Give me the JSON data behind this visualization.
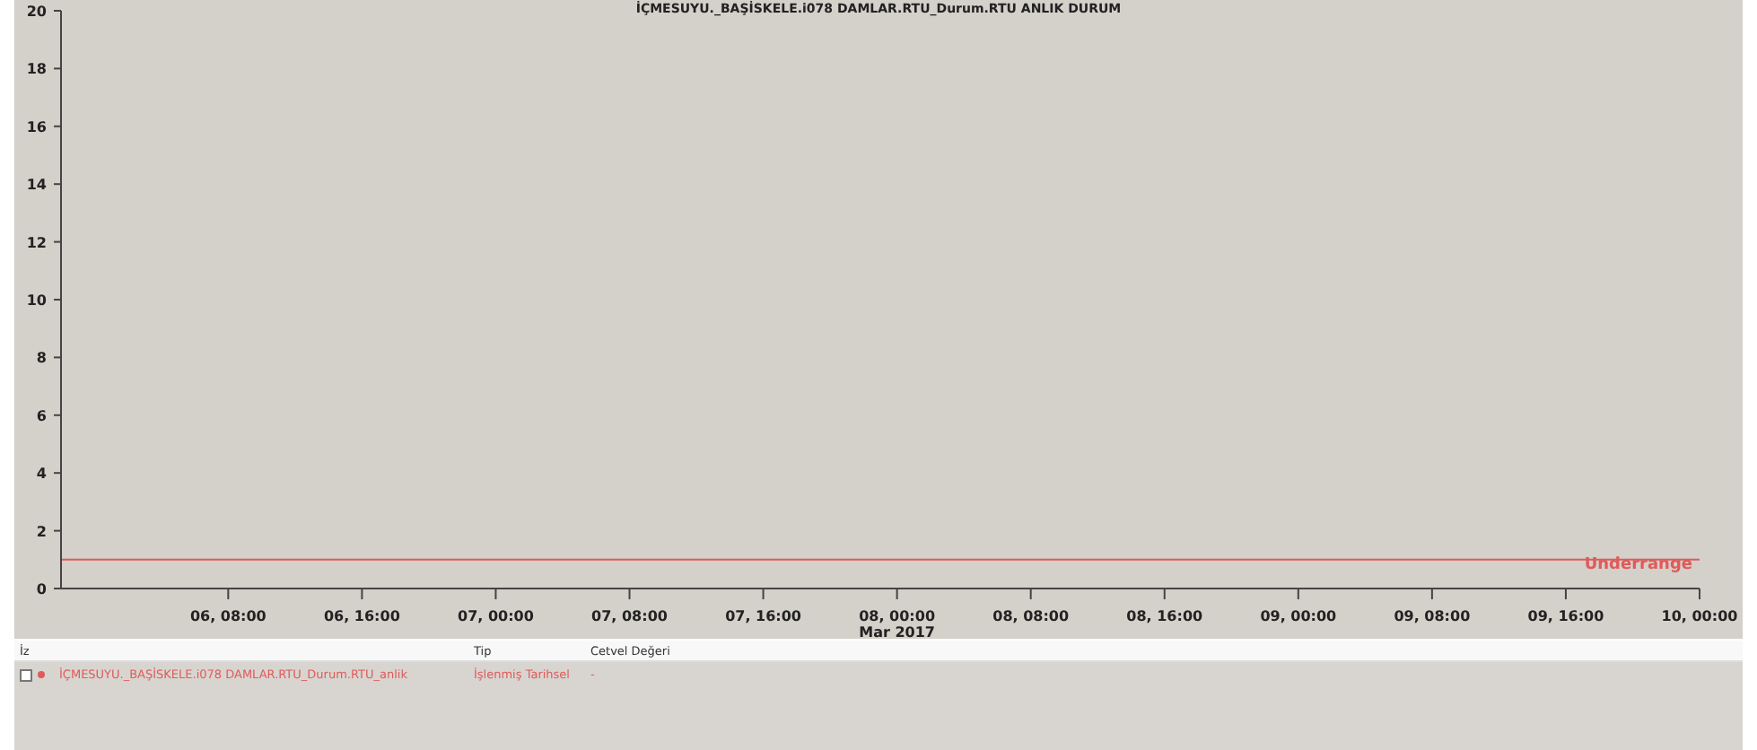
{
  "chart_data": {
    "type": "line",
    "title": "İÇMESUYU._BAŞİSKELE.i078 DAMLAR.RTU_Durum.RTU ANLIK DURUM",
    "x": [
      "2017-03-05T22:00",
      "2017-03-10T00:00"
    ],
    "series": [
      {
        "name": "İÇMESUYU._BAŞİSKELE.i078 DAMLAR.RTU_Durum.RTU_anlik",
        "color": "#e05a5a",
        "values": [
          1,
          1
        ]
      }
    ],
    "xlim": [
      "2017-03-05T22:00",
      "2017-03-10T00:00"
    ],
    "xticks": [
      {
        "value": "2017-03-06T08:00",
        "label": "06, 08:00"
      },
      {
        "value": "2017-03-06T16:00",
        "label": "06, 16:00"
      },
      {
        "value": "2017-03-07T00:00",
        "label": "07, 00:00"
      },
      {
        "value": "2017-03-07T08:00",
        "label": "07, 08:00"
      },
      {
        "value": "2017-03-07T16:00",
        "label": "07, 16:00"
      },
      {
        "value": "2017-03-08T00:00",
        "label": "08, 00:00\nMar 2017"
      },
      {
        "value": "2017-03-08T08:00",
        "label": "08, 08:00"
      },
      {
        "value": "2017-03-08T16:00",
        "label": "08, 16:00"
      },
      {
        "value": "2017-03-09T00:00",
        "label": "09, 00:00"
      },
      {
        "value": "2017-03-09T08:00",
        "label": "09, 08:00"
      },
      {
        "value": "2017-03-09T16:00",
        "label": "09, 16:00"
      },
      {
        "value": "2017-03-10T00:00",
        "label": "10, 00:00"
      }
    ],
    "ylim": [
      0,
      20
    ],
    "yticks": [
      0,
      2,
      4,
      6,
      8,
      10,
      12,
      14,
      16,
      18,
      20
    ],
    "grid": false,
    "legend": "bottom",
    "marker": "none",
    "line_style": "solid",
    "annotations": [
      "Underrange",
      "İz",
      "Tip",
      "Cetvel Değeri",
      "İşlenmiş Tarihsel",
      "-"
    ]
  }
}
